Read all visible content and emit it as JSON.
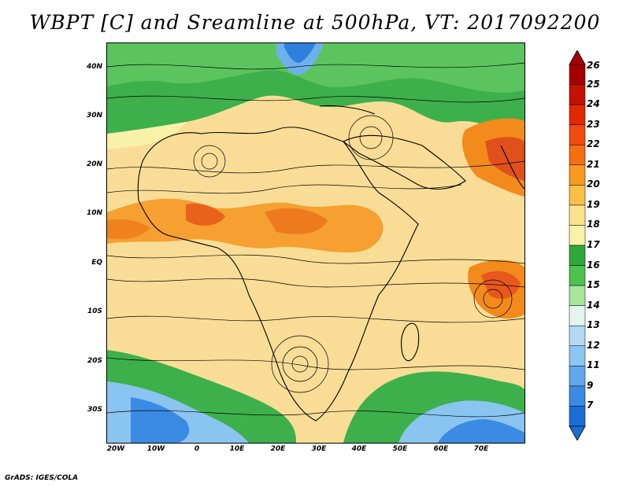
{
  "title": "WBPT [C] and Sreamline at 500hPa, VT: 2017092200",
  "credit": "GrADS: IGES/COLA",
  "lat_labels": [
    "40N",
    "30N",
    "20N",
    "10N",
    "EQ",
    "10S",
    "20S",
    "30S"
  ],
  "lon_labels": [
    "20W",
    "10W",
    "0",
    "10E",
    "20E",
    "30E",
    "40E",
    "50E",
    "60E",
    "70E"
  ],
  "colorbar": {
    "labels": [
      "26",
      "25",
      "24",
      "23",
      "22",
      "21",
      "20",
      "19",
      "18",
      "17",
      "16",
      "15",
      "14",
      "13",
      "12",
      "11",
      "9",
      "7"
    ],
    "colors": [
      "#a50000",
      "#c41200",
      "#e12a00",
      "#f04a0c",
      "#f56e12",
      "#f99a1e",
      "#fbbf46",
      "#fce28a",
      "#f8f2a8",
      "#2fa83c",
      "#4cc150",
      "#a8e69a",
      "#e2f6f0",
      "#b4d9f5",
      "#8cc4f2",
      "#60a8eb",
      "#3b8ae3",
      "#1a6ed8"
    ]
  }
}
